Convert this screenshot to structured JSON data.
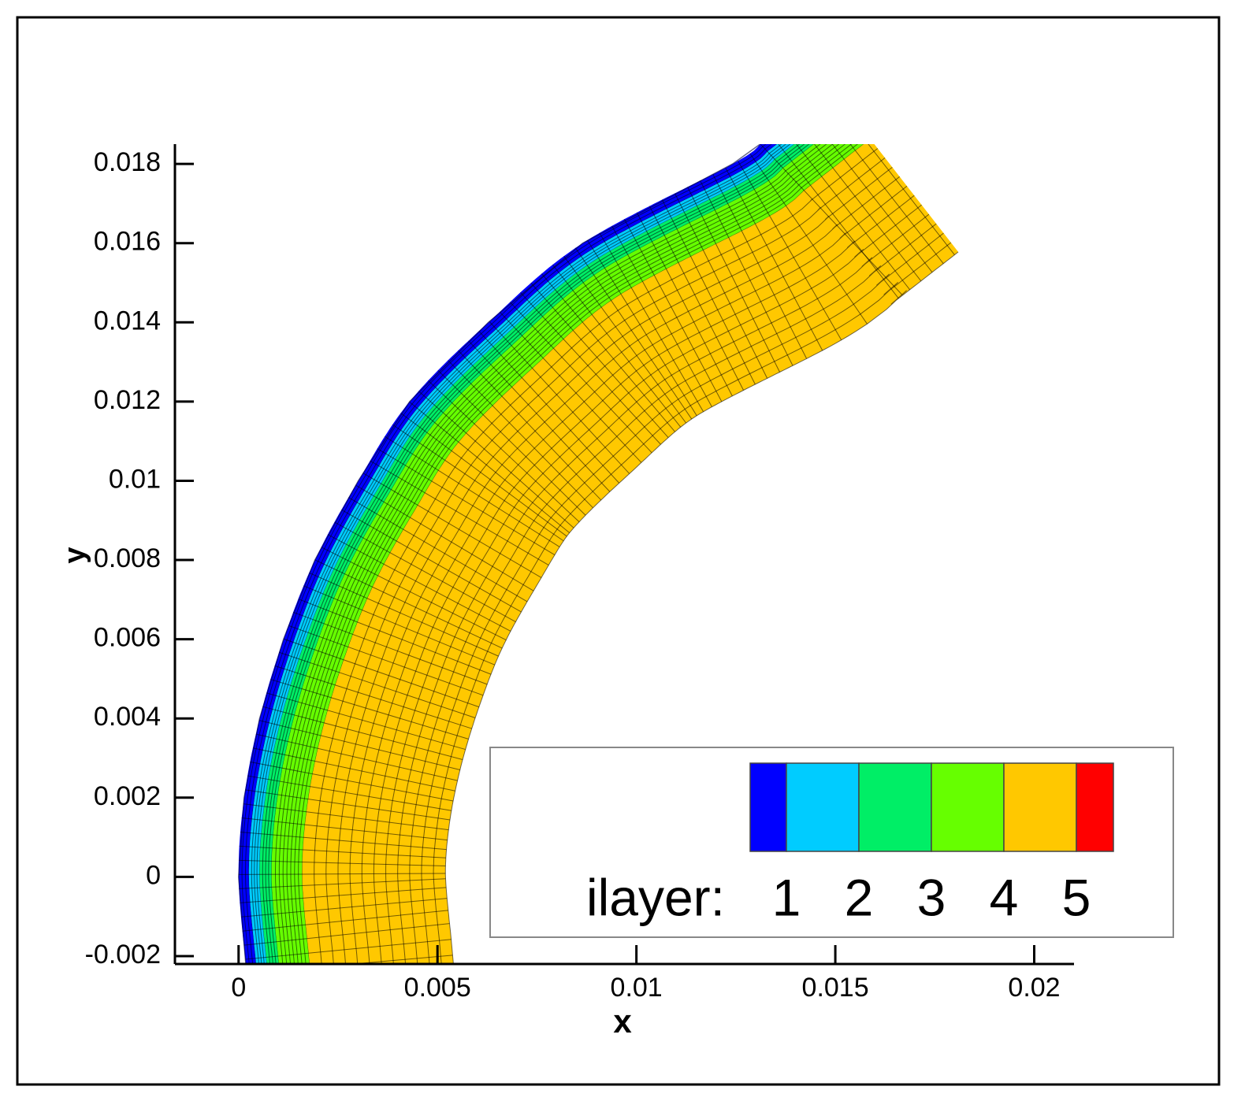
{
  "chart_data": {
    "type": "mesh",
    "xlabel": "x",
    "ylabel": "y",
    "xlim": [
      -0.0016,
      0.021
    ],
    "ylim": [
      -0.0022,
      0.0185
    ],
    "xticks": [
      0,
      0.005,
      0.01,
      0.015,
      0.02
    ],
    "yticks": [
      -0.002,
      0,
      0.002,
      0.004,
      0.006,
      0.008,
      0.01,
      0.012,
      0.014,
      0.016,
      0.018
    ],
    "boundary": {
      "x": [
        0.00018,
        0,
        0.00014,
        0.00053,
        0.00113,
        0.00192,
        0.00301,
        0.0043,
        0.00628,
        0.00865,
        0.01242,
        0.01311
      ],
      "y": [
        -0.0022,
        0,
        0.002,
        0.004,
        0.006,
        0.008,
        0.01,
        0.012,
        0.014,
        0.016,
        0.018,
        0.0185
      ]
    },
    "layer_thickness": [
      0.00026,
      0.00027,
      0.0003,
      0.00077,
      0.0036
    ],
    "legend": {
      "title": "ilayer:",
      "levels": [
        1,
        2,
        3,
        4,
        5
      ],
      "colors": [
        "#0000ff",
        "#00ccff",
        "#00ee66",
        "#66ff00",
        "#ffc800",
        "#ff0000"
      ]
    }
  }
}
